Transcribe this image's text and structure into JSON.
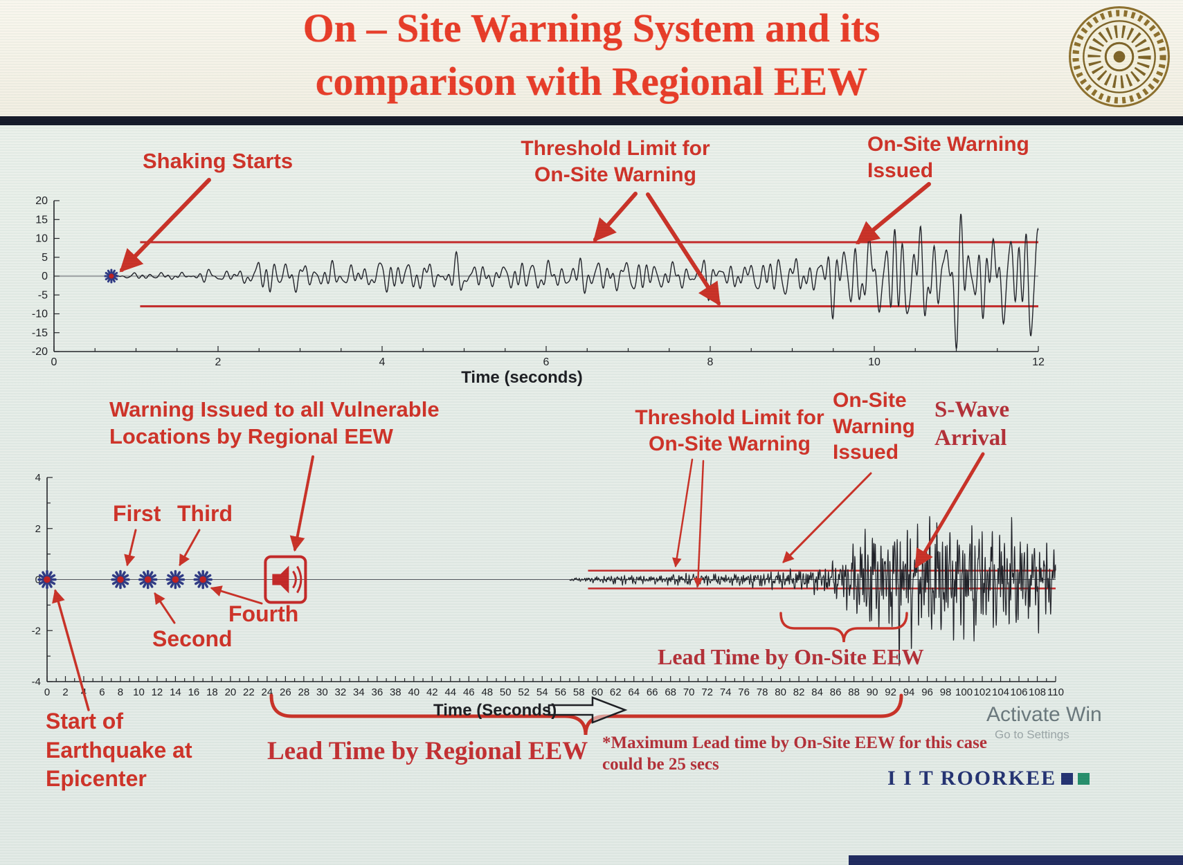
{
  "slide": {
    "title_line1": "On – Site Warning System and its",
    "title_line2": "comparison with Regional EEW"
  },
  "top_chart": {
    "ann_shaking": "Shaking Starts",
    "ann_threshold_1": "Threshold Limit for",
    "ann_threshold_2": "On-Site Warning",
    "ann_warning_1": "On-Site Warning",
    "ann_warning_2": "Issued"
  },
  "bottom_chart": {
    "ann_regional_1": "Warning Issued to all Vulnerable",
    "ann_regional_2": "Locations by Regional EEW",
    "ann_first": "First",
    "ann_second": "Second",
    "ann_third": "Third",
    "ann_fourth": "Fourth",
    "ann_threshold_1": "Threshold Limit for",
    "ann_threshold_2": "On-Site Warning",
    "ann_onsite_1": "On-Site",
    "ann_onsite_2": "Warning",
    "ann_onsite_3": "Issued",
    "ann_swave_1": "S-Wave",
    "ann_swave_2": "Arrival",
    "ann_lead_onsite": "Lead Time by On-Site EEW",
    "ann_lead_regional": "Lead Time by Regional EEW",
    "ann_epicenter_1": "Start of",
    "ann_epicenter_2": "Earthquake at",
    "ann_epicenter_3": "Epicenter"
  },
  "footer": {
    "note_line1": "*Maximum Lead time by On-Site EEW for this case",
    "note_line2": "could be 25 secs",
    "watermark_line1": "Activate Win",
    "watermark_line2": "Go to Settings",
    "brand": "I I T ROORKEE"
  },
  "colors": {
    "title_red": "#e93420",
    "accent_red": "#c9291f",
    "serif_red": "#b22730",
    "threshold_red": "#c32020",
    "waveform_dark": "#181820",
    "axis_dark": "#1a1a1f",
    "marker_navy": "#27317f",
    "marker_center_red": "#c01818",
    "brand_navy": "#1c2a6d",
    "brand_teal": "#1f8a66"
  },
  "chart_data": [
    {
      "id": "onsite-record",
      "type": "line",
      "title": "",
      "xlabel": "Time (seconds)",
      "ylabel": "",
      "xlim": [
        0,
        12
      ],
      "x_major": 2,
      "x_minor": 0.5,
      "ylim": [
        -20,
        20
      ],
      "y_major": 5,
      "y_minor": 5,
      "y_tick_labels": [
        20,
        15,
        10,
        5,
        0,
        -5,
        -10,
        -15,
        -20
      ],
      "x_tick_labels": [
        0,
        2,
        4,
        6,
        8,
        10,
        12
      ],
      "threshold_upper": 9,
      "threshold_lower": -8,
      "threshold_start_t": 1.05,
      "shaking_start_t": 0.7,
      "onsite_warning_t": 9.5,
      "wave_seed": 7,
      "wave_dt": 0.005,
      "wave_freqs": [
        3.5,
        5,
        6.5,
        8,
        10,
        12
      ],
      "envelope": [
        [
          0.7,
          0.4
        ],
        [
          1.5,
          1.2
        ],
        [
          2.2,
          1.6
        ],
        [
          2.5,
          4.5
        ],
        [
          3,
          3.8
        ],
        [
          3.5,
          3.2
        ],
        [
          4.5,
          4.6
        ],
        [
          5.5,
          3.6
        ],
        [
          6.5,
          4.6
        ],
        [
          7.5,
          4.0
        ],
        [
          8.5,
          4.4
        ],
        [
          9.0,
          5.0
        ],
        [
          9.3,
          7.0
        ],
        [
          9.6,
          9.5
        ],
        [
          10.0,
          11
        ],
        [
          10.4,
          15.5
        ],
        [
          10.8,
          12.5
        ],
        [
          11.2,
          16
        ],
        [
          11.6,
          13
        ],
        [
          12,
          14.5
        ]
      ]
    },
    {
      "id": "comparison-record",
      "type": "line",
      "title": "",
      "xlabel": "Time (Seconds)",
      "ylabel": "",
      "xlim": [
        0,
        110
      ],
      "x_major": 2,
      "x_minor": 1,
      "ylim": [
        -4,
        4
      ],
      "y_major": 2,
      "y_minor": 1,
      "y_tick_labels": [
        4,
        2,
        0,
        -2,
        -4
      ],
      "threshold_upper": 0.35,
      "threshold_lower": -0.35,
      "threshold_start_t": 59,
      "epicenter_t": 0,
      "p_wave_detections": [
        [
          "First",
          8
        ],
        [
          "Second",
          11
        ],
        [
          "Third",
          14
        ],
        [
          "Fourth",
          17
        ]
      ],
      "regional_warning_t": 26,
      "onsite_warning_t": 80,
      "s_wave_arrival_t": 93,
      "max_lead_time_secs": 25,
      "wave_seed": 13,
      "wave_dt": 0.02,
      "wave_freqs": [
        0.9,
        1.4,
        2.1,
        2.9,
        3.8,
        5.2,
        6.5
      ],
      "envelope": [
        [
          57,
          0.05
        ],
        [
          60,
          0.12
        ],
        [
          63,
          0.2
        ],
        [
          66,
          0.14
        ],
        [
          70,
          0.26
        ],
        [
          74,
          0.2
        ],
        [
          78,
          0.3
        ],
        [
          81,
          0.38
        ],
        [
          84,
          0.5
        ],
        [
          86,
          0.7
        ],
        [
          88,
          1.4
        ],
        [
          90,
          2.4
        ],
        [
          91,
          1.6
        ],
        [
          93,
          2.6
        ],
        [
          95,
          2.0
        ],
        [
          97,
          2.5
        ],
        [
          99,
          2.1
        ],
        [
          101,
          2.4
        ],
        [
          103,
          1.9
        ],
        [
          105,
          2.2
        ],
        [
          107,
          1.7
        ],
        [
          110,
          1.6
        ]
      ]
    }
  ]
}
